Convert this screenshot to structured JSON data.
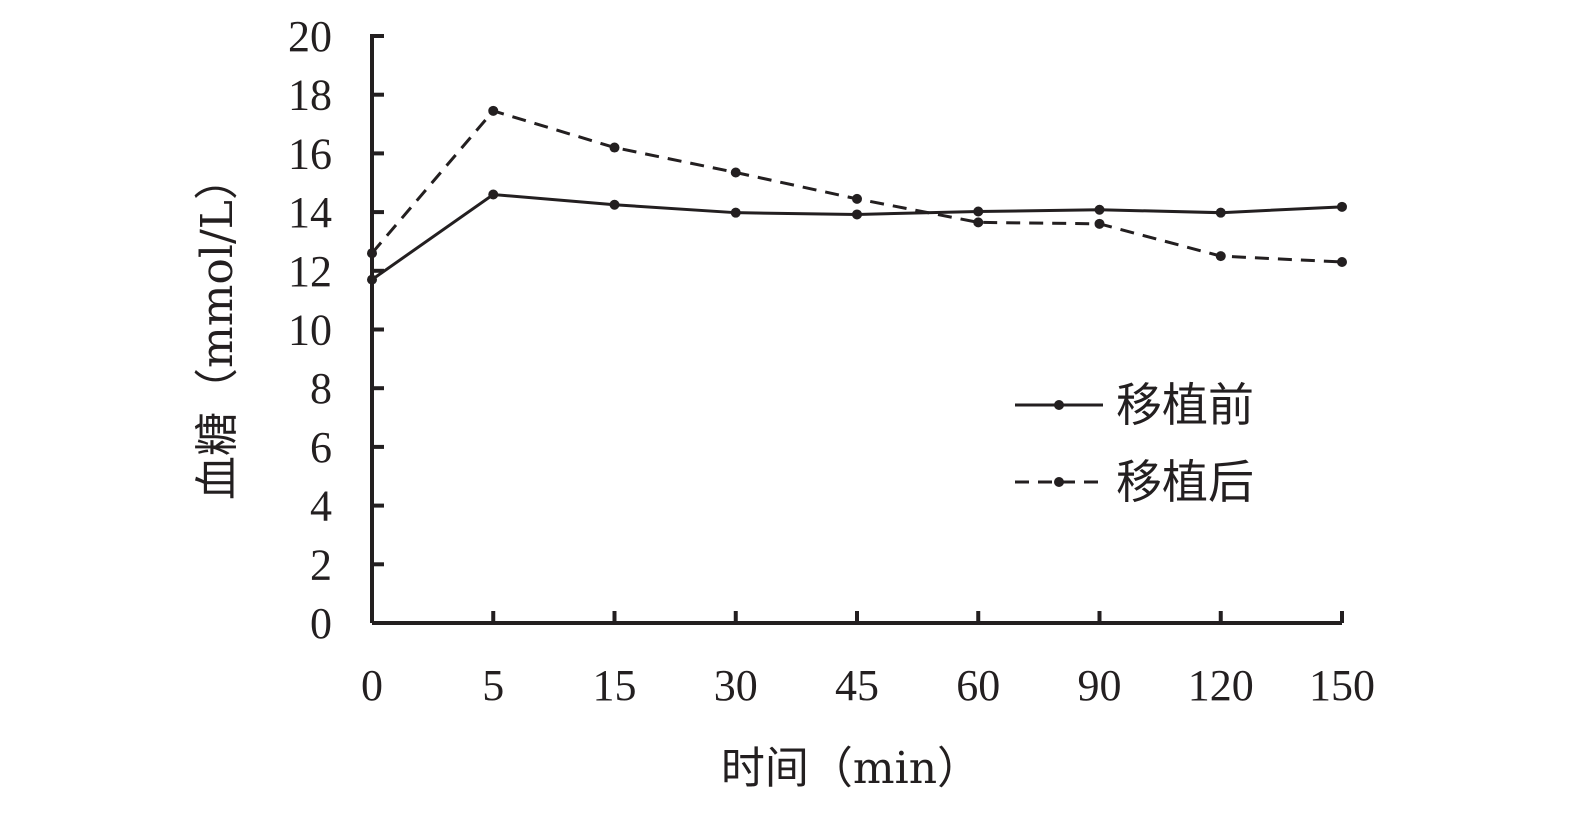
{
  "chart_data": {
    "type": "line",
    "categories": [
      "0",
      "5",
      "15",
      "30",
      "45",
      "60",
      "90",
      "120",
      "150"
    ],
    "series": [
      {
        "name": "移植前",
        "style": "solid",
        "values": [
          11.7,
          14.6,
          14.25,
          13.98,
          13.92,
          14.02,
          14.08,
          13.98,
          14.18
        ]
      },
      {
        "name": "移植后",
        "style": "dashed",
        "values": [
          12.6,
          17.45,
          16.2,
          15.35,
          14.45,
          13.65,
          13.6,
          12.5,
          12.3
        ]
      }
    ],
    "xlabel": "时间（min）",
    "ylabel": "血糖（mmol/L）",
    "ylim": [
      0,
      20
    ],
    "yticks": [
      "0",
      "2",
      "4",
      "6",
      "8",
      "10",
      "12",
      "14",
      "16",
      "18",
      "20"
    ],
    "grid": false,
    "legend_position": "center-right",
    "colors": {
      "line": "#231f20",
      "axis": "#231f20"
    }
  }
}
